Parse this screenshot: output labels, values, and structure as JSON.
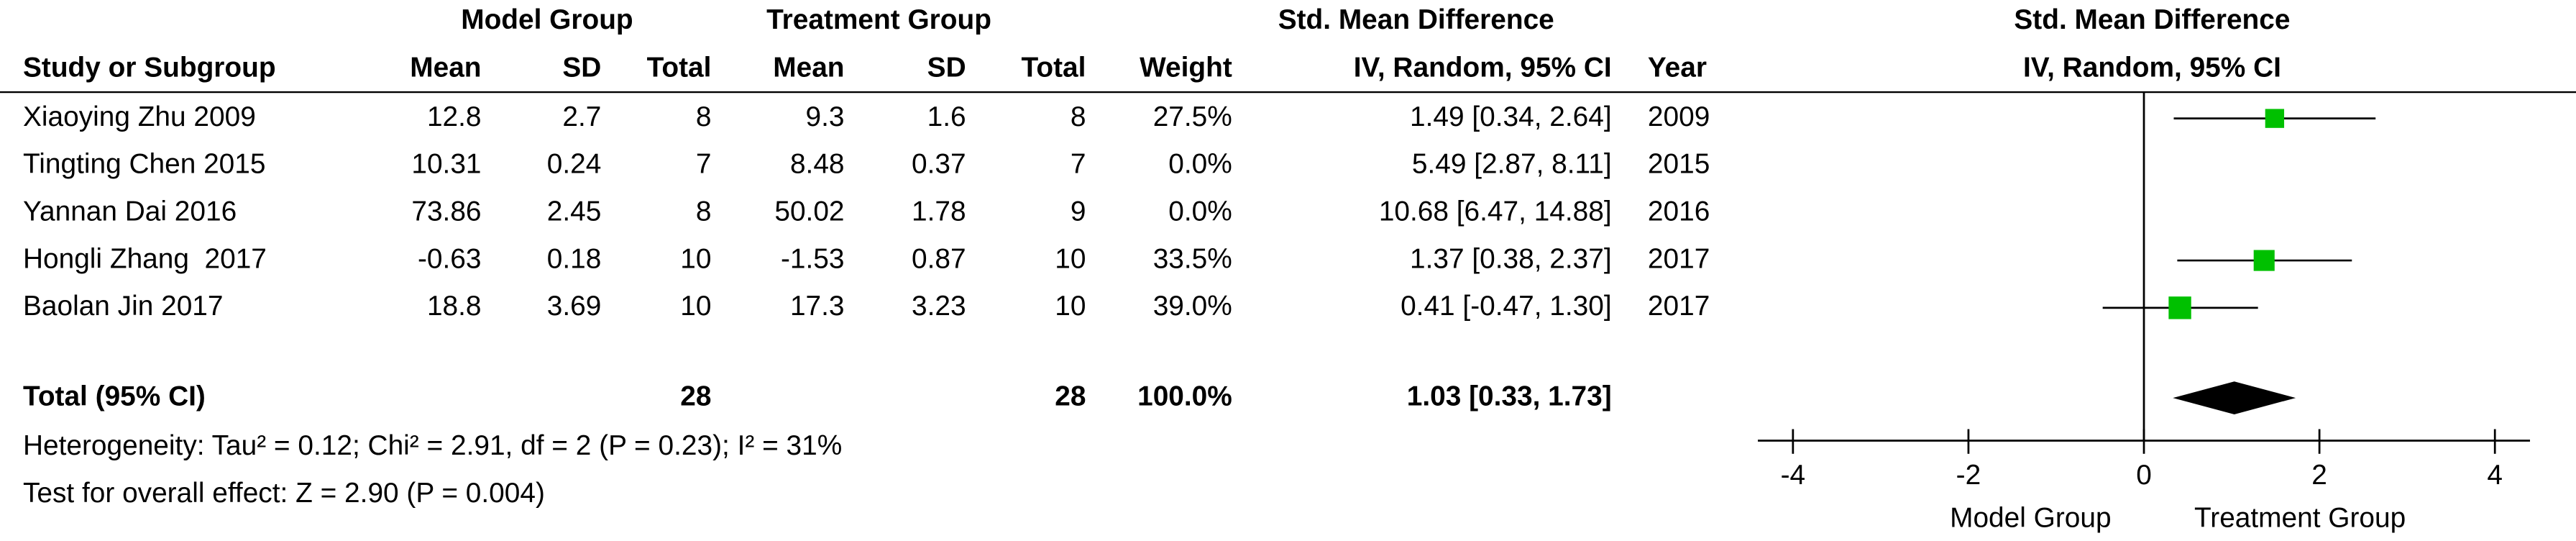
{
  "chart_data": {
    "type": "forest",
    "group_headers": [
      "Model Group",
      "Treatment Group",
      "Std. Mean Difference"
    ],
    "columns": [
      "Study or Subgroup",
      "Mean",
      "SD",
      "Total",
      "Mean",
      "SD",
      "Total",
      "Weight",
      "IV, Random, 95% CI",
      "Year"
    ],
    "plot_title": "Std. Mean Difference",
    "plot_subtitle": "IV, Random, 95% CI",
    "rows": [
      [
        "Xiaoying Zhu 2009",
        "12.8",
        "2.7",
        "8",
        "9.3",
        "1.6",
        "8"
      ],
      [
        "Tingting Chen 2015",
        "10.31",
        "0.24",
        "7",
        "8.48",
        "0.37",
        "7"
      ],
      [
        "Yannan Dai 2016",
        "73.86",
        "2.45",
        "8",
        "50.02",
        "1.78",
        "9"
      ],
      [
        "Hongli Zhang  2017",
        "-0.63",
        "0.18",
        "10",
        "-1.53",
        "0.87",
        "10"
      ],
      [
        "Baolan Jin 2017",
        "18.8",
        "3.69",
        "10",
        "17.3",
        "3.23",
        "10"
      ]
    ],
    "weights": [
      27.5,
      0,
      0,
      33.5,
      39
    ],
    "weight_labels": [
      "27.5%",
      "0.0%",
      "0.0%",
      "33.5%",
      "39.0%"
    ],
    "estimates": [
      1.49,
      5.49,
      10.68,
      1.37,
      0.41
    ],
    "lower": [
      0.34,
      2.87,
      6.47,
      0.38,
      -0.47
    ],
    "upper": [
      2.64,
      8.11,
      14.88,
      2.37,
      1.3
    ],
    "ci_labels": [
      "1.49 [0.34, 2.64]",
      "5.49 [2.87, 8.11]",
      "10.68 [6.47, 14.88]",
      "1.37 [0.38, 2.37]",
      "0.41 [-0.47, 1.30]"
    ],
    "years": [
      "2009",
      "2015",
      "2016",
      "2017",
      "2017"
    ],
    "marker_color": "#00c000",
    "total": {
      "label": "Total (95% CI)",
      "model_total": "28",
      "treatment_total": "28",
      "weight": "100.0%",
      "estimate": 1.03,
      "lower": 0.33,
      "upper": 1.73,
      "ci_label": "1.03 [0.33, 1.73]"
    },
    "heterogeneity": "Heterogeneity: Tau² = 0.12; Chi² = 2.91, df = 2 (P = 0.23); I² = 31%",
    "overall_effect": "Test for overall effect: Z = 2.90 (P = 0.004)",
    "xlim": [
      -4.4,
      4.4
    ],
    "xticks": [
      -4,
      -2,
      0,
      2,
      4
    ],
    "x_label_left": "Model Group",
    "x_label_right": "Treatment Group"
  }
}
